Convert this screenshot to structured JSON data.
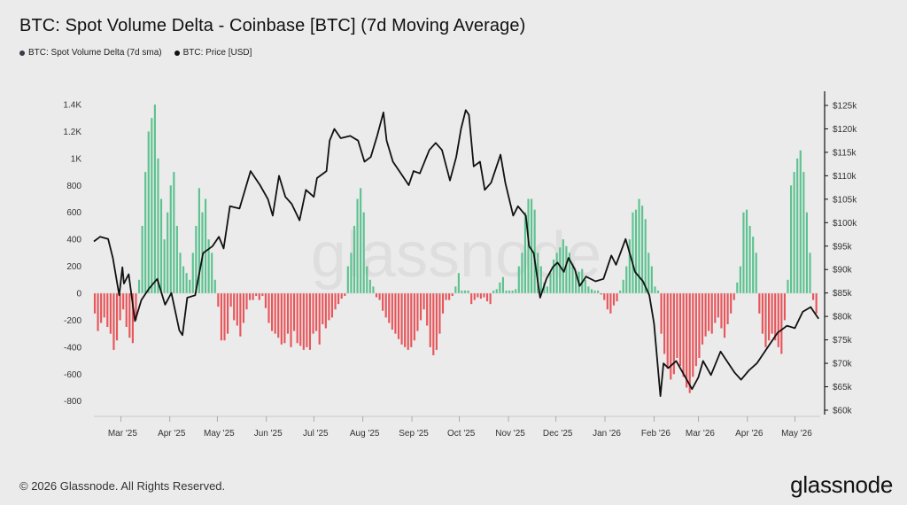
{
  "title": "BTC: Spot Volume Delta - Coinbase [BTC] (7d Moving Average)",
  "legend": [
    {
      "label": "BTC: Spot Volume Delta (7d sma)",
      "color": "#3a3a4a"
    },
    {
      "label": "BTC: Price [USD]",
      "color": "#111111"
    }
  ],
  "footer": {
    "copyright": "© 2026 Glassnode. All Rights Reserved.",
    "logo": "glassnode"
  },
  "watermark": "glassnode",
  "colors": {
    "positive": "#5cc28f",
    "negative": "#e8555a",
    "price": "#111111",
    "background": "#ebebeb"
  },
  "chart_data": {
    "type": "bar",
    "title": "BTC: Spot Volume Delta - Coinbase [BTC] (7d Moving Average)",
    "x_ticks": [
      "Mar '25",
      "Apr '25",
      "May '25",
      "Jun '25",
      "Jul '25",
      "Aug '25",
      "Sep '25",
      "Oct '25",
      "Nov '25",
      "Dec '25",
      "Jan '26",
      "Feb '26",
      "Mar '26",
      "Apr '26",
      "May '26"
    ],
    "x_range": [
      "2025-02-12",
      "2026-05-17"
    ],
    "y_left": {
      "ticks": [
        "-800",
        "-600",
        "-400",
        "-200",
        "0",
        "200",
        "400",
        "600",
        "800",
        "1K",
        "1.2K",
        "1.4K"
      ],
      "range": [
        -860,
        1440
      ]
    },
    "y_right": {
      "ticks": [
        "$60k",
        "$65k",
        "$70k",
        "$75k",
        "$80k",
        "$85k",
        "$90k",
        "$95k",
        "$100k",
        "$105k",
        "$110k",
        "$115k",
        "$120k",
        "$125k"
      ],
      "range": [
        60000,
        127000
      ]
    },
    "grid": false,
    "series": [
      {
        "name": "BTC: Spot Volume Delta (7d sma)",
        "kind": "bar",
        "axis": "left",
        "date_step_days": 2,
        "values": [
          -150,
          -280,
          -220,
          -180,
          -250,
          -300,
          -420,
          -350,
          -200,
          -120,
          -250,
          -330,
          -370,
          -200,
          100,
          500,
          900,
          1200,
          1300,
          1400,
          1000,
          700,
          400,
          600,
          800,
          900,
          500,
          300,
          200,
          150,
          100,
          300,
          500,
          780,
          600,
          700,
          400,
          300,
          100,
          -100,
          -350,
          -350,
          -300,
          -100,
          -200,
          -240,
          -320,
          -220,
          -120,
          -50,
          -50,
          -20,
          -50,
          -20,
          -110,
          -220,
          -280,
          -300,
          -330,
          -380,
          -370,
          -300,
          -400,
          -280,
          -370,
          -390,
          -420,
          -400,
          -420,
          -300,
          -280,
          -380,
          -230,
          -260,
          -200,
          -180,
          -120,
          -80,
          -40,
          -20,
          200,
          300,
          500,
          700,
          780,
          600,
          200,
          100,
          50,
          -30,
          -50,
          -130,
          -180,
          -220,
          -270,
          -300,
          -340,
          -380,
          -400,
          -420,
          -400,
          -350,
          -280,
          -200,
          -120,
          -240,
          -400,
          -460,
          -420,
          -300,
          -150,
          -50,
          -50,
          -20,
          50,
          150,
          20,
          20,
          20,
          -80,
          -50,
          -30,
          -40,
          -30,
          -60,
          -80,
          20,
          30,
          80,
          120,
          20,
          20,
          20,
          30,
          200,
          300,
          600,
          700,
          700,
          620,
          300,
          200,
          80,
          50,
          150,
          250,
          300,
          340,
          400,
          350,
          300,
          220,
          150,
          160,
          180,
          100,
          50,
          30,
          20,
          20,
          -10,
          -50,
          -120,
          -150,
          -90,
          -60,
          20,
          100,
          200,
          400,
          600,
          620,
          700,
          650,
          550,
          300,
          200,
          50,
          20,
          -300,
          -450,
          -560,
          -640,
          -600,
          -480,
          -540,
          -620,
          -700,
          -740,
          -620,
          -540,
          -480,
          -380,
          -320,
          -280,
          -300,
          -220,
          -180,
          -260,
          -330,
          -230,
          -150,
          -50,
          80,
          200,
          600,
          620,
          500,
          420,
          300,
          -150,
          -300,
          -400,
          -350,
          -300,
          -350,
          -400,
          -450,
          -200,
          100,
          800,
          900,
          1000,
          1060,
          900,
          600,
          300,
          -50,
          -150,
          -200,
          -230,
          -250,
          -180,
          -120,
          -60,
          150,
          400,
          450,
          320,
          180,
          200,
          100,
          40,
          -50,
          -100,
          -150,
          -200,
          20,
          60,
          50,
          30,
          20,
          -20,
          -100,
          -150,
          -180,
          -200,
          -210,
          -180,
          -100,
          20,
          200,
          250,
          350,
          450,
          520,
          560,
          200,
          -200,
          -250,
          -150,
          200,
          500,
          600,
          800,
          820,
          650,
          420,
          420,
          380,
          -220
        ]
      },
      {
        "name": "BTC: Price [USD]",
        "kind": "line",
        "axis": "right",
        "points": [
          [
            "2025-02-12",
            96000
          ],
          [
            "2025-02-16",
            97000
          ],
          [
            "2025-02-21",
            96500
          ],
          [
            "2025-02-24",
            92500
          ],
          [
            "2025-02-28",
            84500
          ],
          [
            "2025-03-02",
            90500
          ],
          [
            "2025-03-03",
            87000
          ],
          [
            "2025-03-06",
            89000
          ],
          [
            "2025-03-10",
            79000
          ],
          [
            "2025-03-14",
            83500
          ],
          [
            "2025-03-19",
            86000
          ],
          [
            "2025-03-24",
            88000
          ],
          [
            "2025-03-29",
            82500
          ],
          [
            "2025-04-02",
            85000
          ],
          [
            "2025-04-07",
            77000
          ],
          [
            "2025-04-09",
            76000
          ],
          [
            "2025-04-12",
            84000
          ],
          [
            "2025-04-17",
            84500
          ],
          [
            "2025-04-22",
            93500
          ],
          [
            "2025-04-28",
            95000
          ],
          [
            "2025-05-02",
            97000
          ],
          [
            "2025-05-05",
            94500
          ],
          [
            "2025-05-09",
            103500
          ],
          [
            "2025-05-15",
            103000
          ],
          [
            "2025-05-22",
            111000
          ],
          [
            "2025-05-28",
            108000
          ],
          [
            "2025-06-02",
            105000
          ],
          [
            "2025-06-05",
            101500
          ],
          [
            "2025-06-09",
            110000
          ],
          [
            "2025-06-13",
            105500
          ],
          [
            "2025-06-17",
            104000
          ],
          [
            "2025-06-22",
            100500
          ],
          [
            "2025-06-26",
            107000
          ],
          [
            "2025-07-01",
            105500
          ],
          [
            "2025-07-03",
            109500
          ],
          [
            "2025-07-09",
            111000
          ],
          [
            "2025-07-11",
            117500
          ],
          [
            "2025-07-14",
            120000
          ],
          [
            "2025-07-18",
            118000
          ],
          [
            "2025-07-24",
            118500
          ],
          [
            "2025-07-29",
            117500
          ],
          [
            "2025-08-02",
            113000
          ],
          [
            "2025-08-06",
            114000
          ],
          [
            "2025-08-10",
            118500
          ],
          [
            "2025-08-14",
            123500
          ],
          [
            "2025-08-16",
            117500
          ],
          [
            "2025-08-20",
            113000
          ],
          [
            "2025-08-25",
            110500
          ],
          [
            "2025-08-30",
            108000
          ],
          [
            "2025-09-02",
            111000
          ],
          [
            "2025-09-06",
            110500
          ],
          [
            "2025-09-12",
            115500
          ],
          [
            "2025-09-16",
            117000
          ],
          [
            "2025-09-20",
            115500
          ],
          [
            "2025-09-25",
            109000
          ],
          [
            "2025-09-29",
            114000
          ],
          [
            "2025-10-02",
            120000
          ],
          [
            "2025-10-05",
            124000
          ],
          [
            "2025-10-07",
            123000
          ],
          [
            "2025-10-10",
            112000
          ],
          [
            "2025-10-14",
            113000
          ],
          [
            "2025-10-17",
            107000
          ],
          [
            "2025-10-21",
            108500
          ],
          [
            "2025-10-27",
            114500
          ],
          [
            "2025-10-30",
            108500
          ],
          [
            "2025-11-04",
            101500
          ],
          [
            "2025-11-07",
            103500
          ],
          [
            "2025-11-12",
            101500
          ],
          [
            "2025-11-14",
            95000
          ],
          [
            "2025-11-17",
            93500
          ],
          [
            "2025-11-21",
            84000
          ],
          [
            "2025-11-25",
            88000
          ],
          [
            "2025-11-29",
            90500
          ],
          [
            "2025-12-02",
            91500
          ],
          [
            "2025-12-06",
            89500
          ],
          [
            "2025-12-09",
            92500
          ],
          [
            "2025-12-13",
            90000
          ],
          [
            "2025-12-16",
            86500
          ],
          [
            "2025-12-20",
            88500
          ],
          [
            "2025-12-26",
            87500
          ],
          [
            "2025-12-31",
            88000
          ],
          [
            "2026-01-05",
            93000
          ],
          [
            "2026-01-08",
            91000
          ],
          [
            "2026-01-14",
            96500
          ],
          [
            "2026-01-20",
            89500
          ],
          [
            "2026-01-25",
            87500
          ],
          [
            "2026-01-29",
            84500
          ],
          [
            "2026-02-01",
            78500
          ],
          [
            "2026-02-05",
            63000
          ],
          [
            "2026-02-07",
            70000
          ],
          [
            "2026-02-10",
            69000
          ],
          [
            "2026-02-15",
            70500
          ],
          [
            "2026-02-20",
            67500
          ],
          [
            "2026-02-25",
            64500
          ],
          [
            "2026-03-01",
            67000
          ],
          [
            "2026-03-04",
            70500
          ],
          [
            "2026-03-09",
            67500
          ],
          [
            "2026-03-15",
            72500
          ],
          [
            "2026-03-20",
            70000
          ],
          [
            "2026-03-24",
            68000
          ],
          [
            "2026-03-28",
            66500
          ],
          [
            "2026-04-02",
            68500
          ],
          [
            "2026-04-07",
            70000
          ],
          [
            "2026-04-12",
            72500
          ],
          [
            "2026-04-16",
            74500
          ],
          [
            "2026-04-20",
            76500
          ],
          [
            "2026-04-26",
            78000
          ],
          [
            "2026-05-01",
            77500
          ],
          [
            "2026-05-06",
            81000
          ],
          [
            "2026-05-11",
            82000
          ],
          [
            "2026-05-14",
            80500
          ],
          [
            "2026-05-16",
            79500
          ]
        ]
      }
    ]
  }
}
